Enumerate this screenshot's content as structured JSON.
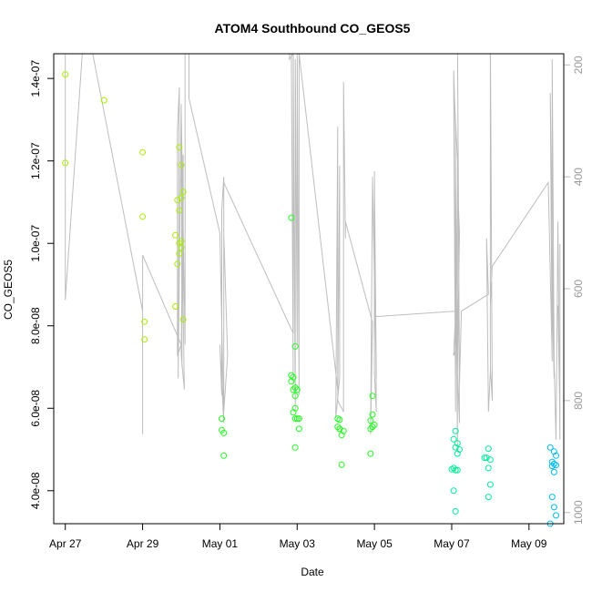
{
  "chart_data": {
    "type": "scatter",
    "title": "ATOM4 Southbound CO_GEOS5",
    "xlabel": "Date",
    "ylabel": "CO_GEOS5",
    "x_ticks": [
      "Apr 27",
      "Apr 29",
      "May 01",
      "May 03",
      "May 05",
      "May 07",
      "May 09"
    ],
    "y_ticks": [
      "4.0e-08",
      "6.0e-08",
      "8.0e-08",
      "1.0e-07",
      "1.2e-07",
      "1.4e-07"
    ],
    "y_tick_values": [
      4e-08,
      6e-08,
      8e-08,
      1e-07,
      1.2e-07,
      1.4e-07
    ],
    "ylim": [
      3.2e-08,
      1.46e-07
    ],
    "xlim_days": [
      -0.3,
      12.9
    ],
    "x_origin": "Apr 27",
    "right_axis": {
      "ticks": [
        "200",
        "400",
        "600",
        "800",
        "1000"
      ],
      "values": [
        200,
        400,
        600,
        800,
        1000
      ],
      "range_top": 180,
      "range_bottom": 1020,
      "color": "#bbbbbb"
    },
    "point_colors": {
      "early": "#aaee00",
      "mid": "#22ff22",
      "late": "#00ee99",
      "end": "#00bbee"
    },
    "line_color": "#bdbdbd",
    "grid": false,
    "series": [
      {
        "values": [
          [
            0.0,
            1.41e-07
          ],
          [
            0.0,
            1.195e-07
          ],
          [
            1.0,
            1.347e-07
          ],
          [
            2.0,
            1.221e-07
          ],
          [
            2.0,
            1.065e-07
          ],
          [
            2.05,
            8.1e-08
          ],
          [
            2.05,
            7.67e-08
          ],
          [
            2.85,
            8.47e-08
          ],
          [
            2.85,
            1.02e-07
          ],
          [
            2.9,
            1.105e-07
          ],
          [
            2.95,
            1.233e-07
          ],
          [
            2.9,
            9.5e-08
          ],
          [
            2.95,
            9.75e-08
          ],
          [
            2.95,
            1.08e-07
          ],
          [
            3.0,
            1.11e-07
          ],
          [
            3.0,
            1.19e-07
          ],
          [
            3.0,
            1.005e-07
          ],
          [
            3.0,
            9.9e-08
          ],
          [
            3.05,
            1.125e-07
          ],
          [
            3.05,
            8.15e-08
          ],
          [
            2.95,
            1e-07
          ]
        ]
      },
      {
        "values": [
          [
            4.05,
            5.75e-08
          ],
          [
            4.05,
            5.47e-08
          ],
          [
            4.1,
            5.4e-08
          ],
          [
            4.1,
            4.85e-08
          ],
          [
            5.85,
            1.062e-07
          ],
          [
            5.85,
            6.8e-08
          ],
          [
            5.9,
            6.75e-08
          ],
          [
            5.85,
            6.65e-08
          ],
          [
            5.95,
            6.5e-08
          ],
          [
            5.9,
            6.45e-08
          ],
          [
            5.95,
            6.3e-08
          ],
          [
            5.9,
            5.9e-08
          ],
          [
            5.95,
            6e-08
          ],
          [
            6.0,
            5.75e-08
          ],
          [
            5.95,
            5.75e-08
          ],
          [
            6.05,
            5.5e-08
          ],
          [
            5.95,
            5.05e-08
          ],
          [
            5.95,
            7.5e-08
          ],
          [
            6.05,
            5.75e-08
          ],
          [
            6.0,
            6.45e-08
          ],
          [
            7.05,
            5.75e-08
          ],
          [
            7.1,
            5.72e-08
          ],
          [
            7.1,
            5.5e-08
          ],
          [
            7.15,
            5.35e-08
          ],
          [
            7.2,
            5.45e-08
          ],
          [
            7.15,
            4.63e-08
          ],
          [
            7.05,
            5.55e-08
          ],
          [
            7.1,
            5.5e-08
          ],
          [
            7.95,
            6.3e-08
          ],
          [
            7.95,
            5.85e-08
          ],
          [
            7.9,
            5.7e-08
          ],
          [
            8.0,
            5.6e-08
          ],
          [
            7.95,
            5.55e-08
          ],
          [
            7.9,
            5.5e-08
          ],
          [
            7.9,
            4.9e-08
          ]
        ]
      },
      {
        "values": [
          [
            10.1,
            5.45e-08
          ],
          [
            10.05,
            5.25e-08
          ],
          [
            10.15,
            5.15e-08
          ],
          [
            10.1,
            5.05e-08
          ],
          [
            10.2,
            5e-08
          ],
          [
            10.15,
            4.9e-08
          ],
          [
            10.05,
            4.55e-08
          ],
          [
            10.1,
            4.5e-08
          ],
          [
            10.15,
            4.5e-08
          ],
          [
            10.0,
            4.52e-08
          ],
          [
            10.05,
            4e-08
          ],
          [
            10.1,
            3.5e-08
          ],
          [
            10.95,
            5.02e-08
          ],
          [
            10.9,
            4.8e-08
          ],
          [
            11.0,
            4.75e-08
          ],
          [
            10.95,
            4.55e-08
          ],
          [
            11.0,
            4.15e-08
          ],
          [
            10.95,
            3.85e-08
          ],
          [
            10.85,
            4.8e-08
          ]
        ]
      },
      {
        "values": [
          [
            12.55,
            5.05e-08
          ],
          [
            12.65,
            4.95e-08
          ],
          [
            12.7,
            4.85e-08
          ],
          [
            12.6,
            4.7e-08
          ],
          [
            12.65,
            4.65e-08
          ],
          [
            12.6,
            4.6e-08
          ],
          [
            12.7,
            4.62e-08
          ],
          [
            12.65,
            4.45e-08
          ],
          [
            12.6,
            3.85e-08
          ],
          [
            12.65,
            3.6e-08
          ],
          [
            12.7,
            3.4e-08
          ],
          [
            12.55,
            3.2e-08
          ]
        ]
      }
    ],
    "altitude_track": [
      [
        0.0,
        120
      ],
      [
        0.0,
        335
      ],
      [
        0.0,
        620
      ],
      [
        0.5,
        120
      ],
      [
        0.5,
        105
      ],
      [
        2.0,
        640
      ],
      [
        2.0,
        860
      ],
      [
        2.0,
        540
      ],
      [
        3.0,
        700
      ],
      [
        2.9,
        720
      ],
      [
        2.9,
        320
      ],
      [
        2.95,
        240
      ],
      [
        2.92,
        760
      ],
      [
        3.0,
        270
      ],
      [
        3.02,
        740
      ],
      [
        3.02,
        390
      ],
      [
        3.05,
        660
      ],
      [
        3.0,
        400
      ],
      [
        3.08,
        780
      ],
      [
        3.0,
        720
      ],
      [
        3.05,
        360
      ],
      [
        3.05,
        640
      ],
      [
        3.0,
        280
      ],
      [
        3.1,
        700
      ],
      [
        3.1,
        180
      ],
      [
        3.2,
        140
      ],
      [
        3.2,
        260
      ],
      [
        4.0,
        500
      ],
      [
        4.1,
        840
      ],
      [
        4.0,
        700
      ],
      [
        4.05,
        790
      ],
      [
        4.05,
        460
      ],
      [
        4.1,
        400
      ],
      [
        4.1,
        500
      ],
      [
        4.2,
        720
      ],
      [
        4.1,
        820
      ],
      [
        4.1,
        800
      ],
      [
        4.1,
        410
      ],
      [
        5.9,
        680
      ],
      [
        5.9,
        180
      ],
      [
        5.8,
        190
      ],
      [
        5.8,
        170
      ],
      [
        5.85,
        180
      ],
      [
        5.9,
        770
      ],
      [
        5.85,
        170
      ],
      [
        5.9,
        180
      ],
      [
        5.95,
        820
      ],
      [
        5.95,
        190
      ],
      [
        6.0,
        700
      ],
      [
        6.0,
        180
      ],
      [
        6.05,
        790
      ],
      [
        6.05,
        180
      ],
      [
        7.05,
        780
      ],
      [
        7.05,
        310
      ],
      [
        7.0,
        830
      ],
      [
        7.1,
        760
      ],
      [
        7.1,
        380
      ],
      [
        7.05,
        800
      ],
      [
        7.2,
        820
      ],
      [
        7.2,
        230
      ],
      [
        7.25,
        510
      ],
      [
        7.25,
        480
      ],
      [
        7.95,
        660
      ],
      [
        7.9,
        860
      ],
      [
        7.95,
        410
      ],
      [
        8.0,
        580
      ],
      [
        7.95,
        400
      ],
      [
        8.05,
        760
      ],
      [
        8.0,
        420
      ],
      [
        8.05,
        760
      ],
      [
        8.0,
        390
      ],
      [
        8.05,
        820
      ],
      [
        8.0,
        750
      ],
      [
        8.0,
        440
      ],
      [
        8.0,
        650
      ],
      [
        10.1,
        640
      ],
      [
        10.05,
        720
      ],
      [
        10.1,
        710
      ],
      [
        10.05,
        210
      ],
      [
        10.1,
        320
      ],
      [
        10.1,
        820
      ],
      [
        10.05,
        230
      ],
      [
        10.15,
        370
      ],
      [
        10.15,
        890
      ],
      [
        10.1,
        380
      ],
      [
        10.1,
        760
      ],
      [
        10.15,
        410
      ],
      [
        10.2,
        500
      ],
      [
        10.15,
        750
      ],
      [
        10.2,
        840
      ],
      [
        10.15,
        140
      ],
      [
        10.2,
        770
      ],
      [
        10.25,
        640
      ],
      [
        10.95,
        610
      ],
      [
        10.9,
        510
      ],
      [
        10.95,
        820
      ],
      [
        11.0,
        750
      ],
      [
        11.0,
        140
      ],
      [
        11.05,
        800
      ],
      [
        11.0,
        740
      ],
      [
        11.0,
        630
      ],
      [
        11.05,
        560
      ],
      [
        12.5,
        410
      ],
      [
        12.6,
        730
      ],
      [
        12.55,
        250
      ],
      [
        12.65,
        760
      ],
      [
        12.6,
        620
      ],
      [
        12.6,
        190
      ],
      [
        12.65,
        730
      ],
      [
        12.7,
        870
      ],
      [
        12.75,
        480
      ],
      [
        12.8,
        870
      ],
      [
        12.8,
        520
      ],
      [
        12.8,
        830
      ],
      [
        12.75,
        630
      ]
    ]
  }
}
